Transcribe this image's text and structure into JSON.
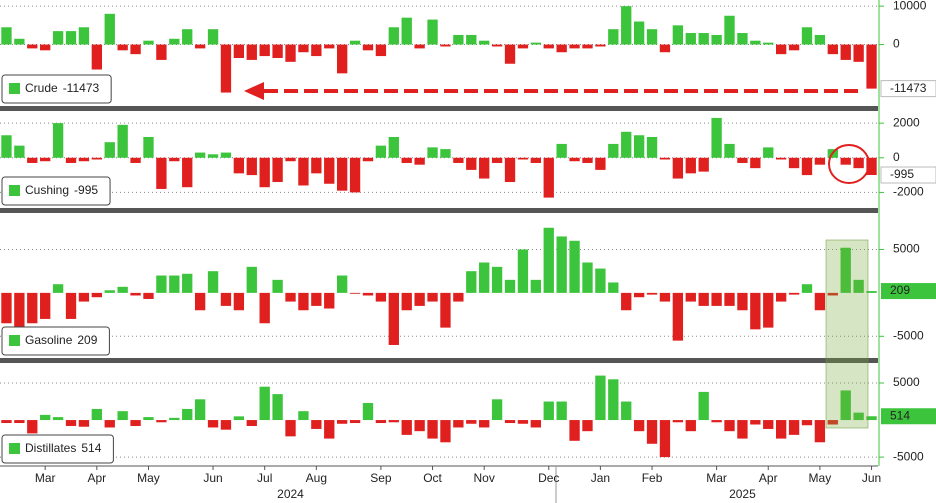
{
  "chart_data": [
    {
      "type": "bar",
      "series": [
        {
          "name": "Crude",
          "positive_color": "#3cc43c",
          "negative_color": "#e01f1f",
          "values": [
            4500,
            1500,
            -1000,
            -1500,
            3500,
            3500,
            4500,
            -6500,
            8000,
            -1500,
            -2500,
            1000,
            -4000,
            1500,
            4000,
            -1000,
            4000,
            -12500,
            -3500,
            -4000,
            -3000,
            -3500,
            -4500,
            -2000,
            -3000,
            -1000,
            -7500,
            1000,
            -1500,
            -3000,
            4500,
            7000,
            -1000,
            6500,
            -500,
            2500,
            2500,
            1000,
            -500,
            -5000,
            -1000,
            500,
            -1000,
            -2000,
            -1000,
            -1000,
            -500,
            4000,
            10000,
            6000,
            4000,
            -2000,
            5000,
            3000,
            3000,
            2500,
            7500,
            3000,
            1000,
            500,
            -2500,
            -1500,
            4500,
            2500,
            -2500,
            -4000,
            -4500,
            -11473
          ]
        }
      ],
      "ylim": [
        -16000,
        11600
      ],
      "yticks": [
        0,
        10000
      ],
      "grid": true,
      "legend": "lower left"
    },
    {
      "type": "bar",
      "series": [
        {
          "name": "Cushing",
          "positive_color": "#3cc43c",
          "negative_color": "#e01f1f",
          "values": [
            1300,
            700,
            -300,
            -200,
            2000,
            -300,
            -200,
            -100,
            900,
            1900,
            -300,
            1200,
            -1800,
            -200,
            -1700,
            300,
            200,
            300,
            -900,
            -1000,
            -1700,
            -1400,
            -200,
            -1600,
            -900,
            -1500,
            -1900,
            -2000,
            -200,
            700,
            1200,
            -300,
            -400,
            600,
            500,
            -300,
            -700,
            -1200,
            -300,
            -1400,
            -100,
            -300,
            -2300,
            800,
            -200,
            -300,
            -700,
            800,
            1500,
            1300,
            1200,
            -100,
            -1200,
            -900,
            -800,
            2300,
            800,
            -300,
            -600,
            600,
            -100,
            -600,
            -1000,
            -400,
            500,
            -400,
            -600,
            -995
          ]
        }
      ],
      "ylim": [
        -2900,
        2700
      ],
      "yticks": [
        -2000,
        0,
        2000
      ],
      "grid": true,
      "legend": "lower left"
    },
    {
      "type": "bar",
      "series": [
        {
          "name": "Gasoline",
          "positive_color": "#3cc43c",
          "negative_color": "#e01f1f",
          "values": [
            -3500,
            -4000,
            -3500,
            -3000,
            1000,
            -3000,
            -1000,
            -500,
            300,
            700,
            -300,
            -700,
            2000,
            2000,
            2200,
            -2000,
            2500,
            -1500,
            -2000,
            3000,
            -3500,
            1500,
            -1000,
            -2000,
            -1500,
            -1800,
            2000,
            -100,
            -300,
            -1000,
            -6000,
            -2000,
            -1500,
            -1000,
            -4000,
            -1000,
            2500,
            3500,
            3000,
            1500,
            5000,
            1500,
            7500,
            6500,
            6000,
            3500,
            2800,
            1200,
            -2000,
            -500,
            -200,
            -1000,
            -5500,
            -1000,
            -1500,
            -1500,
            -1500,
            -2000,
            -4200,
            -4000,
            -1000,
            -200,
            1000,
            -2000,
            -300,
            5200,
            1500,
            209
          ]
        }
      ],
      "ylim": [
        -7500,
        9200
      ],
      "yticks": [
        -5000,
        5000
      ],
      "grid": true,
      "legend": "lower left"
    },
    {
      "type": "bar",
      "series": [
        {
          "name": "Distillates",
          "positive_color": "#3cc43c",
          "negative_color": "#e01f1f",
          "values": [
            -400,
            -400,
            -1800,
            700,
            400,
            -800,
            -900,
            1500,
            -1000,
            1200,
            -800,
            400,
            -300,
            300,
            1500,
            2800,
            -1000,
            -1300,
            500,
            -800,
            4500,
            3500,
            -2200,
            1200,
            -1200,
            -2500,
            -500,
            -400,
            2300,
            -400,
            -300,
            -2000,
            -1500,
            -2500,
            -3000,
            -1000,
            -500,
            -1000,
            2800,
            -400,
            -500,
            -1000,
            2500,
            2500,
            -2800,
            -1500,
            6000,
            5500,
            2500,
            -1500,
            -3200,
            -5000,
            -300,
            -1500,
            3800,
            -300,
            -1500,
            -2500,
            -600,
            -1200,
            -2500,
            -2000,
            -700,
            -3000,
            -600,
            4000,
            1000,
            514
          ]
        }
      ],
      "ylim": [
        -6200,
        7700
      ],
      "yticks": [
        -5000,
        5000
      ],
      "grid": true,
      "legend": "lower left",
      "categories": [
        null,
        null,
        null,
        "Mar",
        null,
        null,
        null,
        "Apr",
        null,
        null,
        null,
        "May",
        null,
        null,
        null,
        null,
        "Jun",
        null,
        null,
        null,
        "Jul",
        null,
        null,
        null,
        "Aug",
        null,
        null,
        null,
        null,
        "Sep",
        null,
        null,
        null,
        "Oct",
        null,
        null,
        null,
        "Nov",
        null,
        null,
        null,
        null,
        "Dec",
        null,
        null,
        null,
        "Jan",
        null,
        null,
        null,
        "Feb",
        null,
        null,
        null,
        null,
        "Mar",
        null,
        null,
        null,
        "Apr",
        null,
        null,
        null,
        "May",
        null,
        null,
        null,
        "Jun"
      ],
      "years": [
        null,
        null,
        null,
        null,
        null,
        null,
        null,
        null,
        null,
        null,
        null,
        null,
        null,
        null,
        null,
        null,
        null,
        null,
        null,
        null,
        null,
        null,
        "2024",
        null,
        null,
        null,
        null,
        null,
        null,
        null,
        null,
        null,
        null,
        null,
        null,
        null,
        null,
        null,
        null,
        null,
        null,
        null,
        null,
        null,
        null,
        null,
        null,
        null,
        null,
        null,
        null,
        null,
        null,
        null,
        null,
        null,
        null,
        "2025",
        null,
        null,
        null,
        null,
        null,
        null,
        null,
        null,
        null,
        null
      ]
    }
  ]
}
